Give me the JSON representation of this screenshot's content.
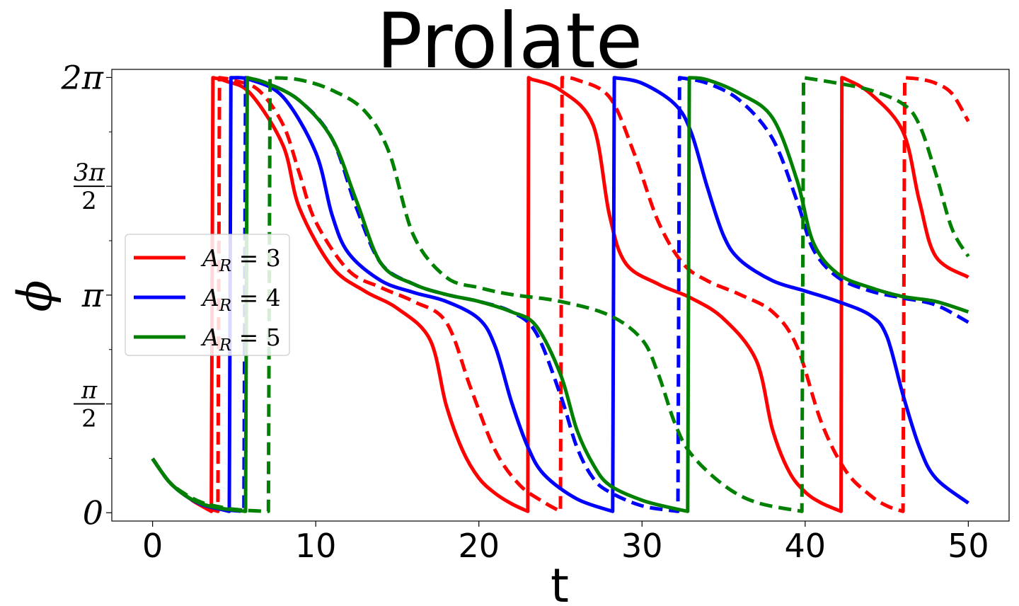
{
  "chart_data": {
    "type": "line",
    "title": "Prolate",
    "xlabel": "t",
    "ylabel": "ϕ",
    "xlim": [
      -2.5,
      52.5
    ],
    "ylim": [
      -0.12,
      6.4
    ],
    "xticks": [
      0,
      10,
      20,
      30,
      40,
      50
    ],
    "yticks": [
      {
        "value": 0,
        "label": "0"
      },
      {
        "value": 1.5708,
        "label_num": "π",
        "label_den": "2"
      },
      {
        "value": 3.1416,
        "label": "π"
      },
      {
        "value": 4.7124,
        "label_num": "3π",
        "label_den": "2"
      },
      {
        "value": 6.2832,
        "label": "2π"
      }
    ],
    "minor_yticks": [
      0.785,
      2.356,
      3.927,
      5.498
    ],
    "legend_position": "center-left",
    "colors": {
      "A3": "#ff0000",
      "A4": "#0000ff",
      "A5": "#008000"
    },
    "series": [
      {
        "name": "A_R = 3",
        "color": "#ff0000",
        "style": "solid",
        "legend": true,
        "x": [
          0,
          1,
          2,
          3,
          3.6,
          3.7,
          4.5,
          6,
          8,
          9,
          11,
          13,
          15,
          17,
          18,
          19,
          20,
          21,
          22,
          23,
          23.05,
          23.2,
          25,
          27,
          28,
          29,
          31,
          33,
          35,
          37,
          38,
          39,
          40,
          41,
          42.2,
          42.25,
          42.4,
          44,
          46,
          47,
          48,
          50
        ],
        "y": [
          0.78,
          0.45,
          0.25,
          0.1,
          0.02,
          6.28,
          6.23,
          6.05,
          5.3,
          4.4,
          3.55,
          3.2,
          2.95,
          2.5,
          1.55,
          0.9,
          0.5,
          0.28,
          0.13,
          0.02,
          6.28,
          6.26,
          6.1,
          5.6,
          4.3,
          3.6,
          3.3,
          3.1,
          2.8,
          2.2,
          1.2,
          0.6,
          0.3,
          0.14,
          0.02,
          6.28,
          6.27,
          6.05,
          5.5,
          4.5,
          3.7,
          3.4
        ]
      },
      {
        "name": "A_R = 3 dashed",
        "color": "#ff0000",
        "style": "dashed",
        "legend": false,
        "x": [
          0,
          1,
          2,
          3,
          4,
          4.1,
          5,
          6.5,
          8,
          9,
          10,
          12,
          14,
          16,
          18,
          19.5,
          21,
          22.5,
          24,
          25,
          25.1,
          26,
          28,
          29.5,
          31,
          32.5,
          34,
          36,
          38,
          39.5,
          41,
          42.5,
          44,
          45,
          46,
          46.1,
          47,
          48,
          49,
          50
        ],
        "y": [
          0.78,
          0.45,
          0.25,
          0.1,
          0.02,
          6.28,
          6.24,
          6.1,
          5.6,
          4.9,
          4.2,
          3.5,
          3.25,
          3.05,
          2.75,
          1.8,
          0.9,
          0.4,
          0.15,
          0.02,
          6.28,
          6.25,
          6.0,
          5.2,
          4.2,
          3.6,
          3.35,
          3.15,
          2.9,
          2.4,
          1.3,
          0.6,
          0.25,
          0.1,
          0.02,
          6.28,
          6.26,
          6.2,
          6.05,
          5.65
        ]
      },
      {
        "name": "A_R = 4",
        "color": "#0000ff",
        "style": "solid",
        "legend": true,
        "x": [
          0,
          1,
          2,
          3,
          4,
          4.7,
          4.8,
          6,
          8,
          10,
          11,
          12,
          14,
          16,
          18,
          20,
          21,
          22,
          23,
          24,
          26,
          28.2,
          28.3,
          30,
          32,
          33,
          34,
          35,
          36,
          38,
          40,
          42,
          44,
          45,
          46,
          47,
          48,
          50
        ],
        "y": [
          0.78,
          0.45,
          0.25,
          0.12,
          0.06,
          0.02,
          6.28,
          6.25,
          6.0,
          5.2,
          4.3,
          3.75,
          3.35,
          3.18,
          3.05,
          2.8,
          2.4,
          1.6,
          0.95,
          0.55,
          0.2,
          0.02,
          6.28,
          6.2,
          5.9,
          5.5,
          4.7,
          4.0,
          3.65,
          3.35,
          3.2,
          3.05,
          2.85,
          2.55,
          1.7,
          0.95,
          0.5,
          0.14
        ]
      },
      {
        "name": "A_R = 4 dashed",
        "color": "#0000ff",
        "style": "dashed",
        "legend": false,
        "x": [
          0,
          1,
          2,
          3,
          4,
          5,
          5.6,
          5.7,
          7,
          9,
          11,
          12.5,
          14,
          16,
          18,
          20,
          22,
          23.5,
          25,
          26,
          27,
          28,
          30,
          32.2,
          32.3,
          34,
          36,
          38,
          39.5,
          40.5,
          42,
          44,
          46,
          48,
          50
        ],
        "y": [
          0.78,
          0.45,
          0.25,
          0.12,
          0.06,
          0.03,
          0.02,
          6.28,
          6.2,
          5.95,
          5.4,
          4.4,
          3.6,
          3.3,
          3.15,
          3.05,
          2.9,
          2.6,
          1.7,
          0.95,
          0.5,
          0.3,
          0.1,
          0.02,
          6.28,
          6.2,
          5.95,
          5.4,
          4.5,
          3.8,
          3.4,
          3.2,
          3.1,
          3.0,
          2.75
        ]
      },
      {
        "name": "A_R = 5",
        "color": "#008000",
        "style": "solid",
        "legend": true,
        "x": [
          0,
          1,
          2,
          3,
          4,
          5,
          5.7,
          5.8,
          7,
          9,
          11,
          12.5,
          14,
          16,
          18,
          20,
          22,
          23.5,
          25,
          26,
          27,
          28,
          30,
          32,
          32.8,
          32.9,
          34,
          36,
          38,
          39.5,
          40.5,
          42,
          44,
          46,
          48,
          50
        ],
        "y": [
          0.78,
          0.45,
          0.25,
          0.13,
          0.07,
          0.04,
          0.02,
          6.28,
          6.2,
          5.95,
          5.4,
          4.5,
          3.6,
          3.3,
          3.15,
          3.05,
          2.9,
          2.7,
          2.0,
          1.2,
          0.7,
          0.4,
          0.18,
          0.06,
          0.02,
          6.28,
          6.25,
          6.05,
          5.7,
          4.8,
          3.9,
          3.45,
          3.25,
          3.12,
          3.05,
          2.9
        ]
      },
      {
        "name": "A_R = 5 dashed",
        "color": "#008000",
        "style": "dashed",
        "legend": false,
        "x": [
          0,
          1,
          2,
          3,
          4,
          5,
          6,
          7.1,
          7.2,
          9,
          11,
          13,
          14.5,
          16,
          18,
          20,
          22,
          25,
          28,
          30,
          31,
          32,
          33,
          35,
          37,
          39.8,
          39.9,
          42,
          44,
          46,
          47,
          48,
          49,
          50
        ],
        "y": [
          0.78,
          0.45,
          0.27,
          0.15,
          0.09,
          0.05,
          0.03,
          0.02,
          6.28,
          6.25,
          6.1,
          5.8,
          5.2,
          4.0,
          3.4,
          3.25,
          3.15,
          3.05,
          2.85,
          2.5,
          2.0,
          1.3,
          0.85,
          0.4,
          0.15,
          0.02,
          6.28,
          6.2,
          6.1,
          5.9,
          5.6,
          4.9,
          4.1,
          3.7
        ]
      }
    ],
    "legend": [
      {
        "label": "A",
        "sub": "R",
        "rest": " = 3",
        "color": "#ff0000"
      },
      {
        "label": "A",
        "sub": "R",
        "rest": " = 4",
        "color": "#0000ff"
      },
      {
        "label": "A",
        "sub": "R",
        "rest": " = 5",
        "color": "#008000"
      }
    ]
  }
}
